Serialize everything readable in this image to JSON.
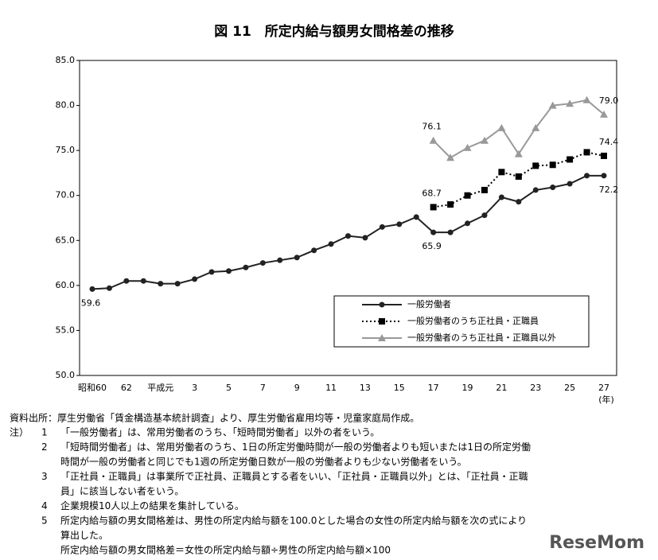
{
  "chart_data": {
    "type": "line",
    "title": "図 11　所定内給与額男女間格差の推移",
    "categories": [
      "昭和60",
      null,
      "62",
      null,
      "平成元",
      null,
      "3",
      null,
      "5",
      null,
      "7",
      null,
      "9",
      null,
      "11",
      null,
      "13",
      null,
      "15",
      null,
      "17",
      null,
      "19",
      null,
      "21",
      null,
      "23",
      null,
      "25",
      null,
      "27"
    ],
    "x_unit": "(年)",
    "ylim": [
      50,
      85
    ],
    "yticks": [
      {
        "value": 50,
        "label": "50.0"
      },
      {
        "value": 55,
        "label": "55.0"
      },
      {
        "value": 60,
        "label": "60.0"
      },
      {
        "value": 65,
        "label": "65.0"
      },
      {
        "value": 70,
        "label": "70.0"
      },
      {
        "value": 75,
        "label": "75.0"
      },
      {
        "value": 80,
        "label": "80.0"
      },
      {
        "value": 85,
        "label": "85.0"
      }
    ],
    "grid": false,
    "legend": "lower right",
    "series": [
      {
        "name": "一般労働者",
        "color": "#222222",
        "marker": "circle",
        "dash": "solid",
        "values": [
          59.6,
          59.7,
          60.5,
          60.5,
          60.2,
          60.2,
          60.7,
          61.5,
          61.6,
          62.0,
          62.5,
          62.8,
          63.1,
          63.9,
          64.6,
          65.5,
          65.3,
          66.5,
          66.8,
          67.6,
          65.9,
          65.9,
          66.9,
          67.8,
          69.8,
          69.3,
          70.6,
          70.9,
          71.3,
          72.2,
          72.2
        ],
        "value_labels": [
          "59.6",
          null,
          null,
          null,
          null,
          null,
          null,
          null,
          null,
          null,
          null,
          null,
          null,
          null,
          null,
          null,
          null,
          null,
          null,
          null,
          "65.9",
          null,
          null,
          null,
          null,
          null,
          null,
          null,
          null,
          null,
          "72.2"
        ]
      },
      {
        "name": "一般労働者のうち正社員・正職員",
        "color": "#000000",
        "marker": "square",
        "dash": "dotted",
        "values": [
          null,
          null,
          null,
          null,
          null,
          null,
          null,
          null,
          null,
          null,
          null,
          null,
          null,
          null,
          null,
          null,
          null,
          null,
          null,
          null,
          68.7,
          69.0,
          70.0,
          70.6,
          72.6,
          72.1,
          73.3,
          73.4,
          74.0,
          74.8,
          74.4
        ],
        "value_labels": [
          null,
          null,
          null,
          null,
          null,
          null,
          null,
          null,
          null,
          null,
          null,
          null,
          null,
          null,
          null,
          null,
          null,
          null,
          null,
          null,
          "68.7",
          null,
          null,
          null,
          null,
          null,
          null,
          null,
          null,
          null,
          "74.4"
        ]
      },
      {
        "name": "一般労働者のうち正社員・正職員以外",
        "color": "#999999",
        "marker": "triangle",
        "dash": "solid",
        "values": [
          null,
          null,
          null,
          null,
          null,
          null,
          null,
          null,
          null,
          null,
          null,
          null,
          null,
          null,
          null,
          null,
          null,
          null,
          null,
          null,
          76.1,
          74.2,
          75.3,
          76.1,
          77.5,
          74.6,
          77.5,
          80.0,
          80.2,
          80.6,
          79.0
        ],
        "value_labels": [
          null,
          null,
          null,
          null,
          null,
          null,
          null,
          null,
          null,
          null,
          null,
          null,
          null,
          null,
          null,
          null,
          null,
          null,
          null,
          null,
          "76.1",
          null,
          null,
          null,
          null,
          null,
          null,
          null,
          null,
          null,
          "79.0"
        ]
      }
    ]
  },
  "source": "資料出所：厚生労働省「賃金構造基本統計調査」より、厚生労働省雇用均等・児童家庭局作成。",
  "notes_label": "注）",
  "notes": [
    {
      "number": "1",
      "lines": [
        "「一般労働者」は、常用労働者のうち、「短時間労働者」以外の者をいう。"
      ]
    },
    {
      "number": "2",
      "lines": [
        "「短時間労働者」は、常用労働者のうち、1日の所定労働時間が一般の労働者よりも短いまたは1日の所定労働",
        "時間が一般の労働者と同じでも1週の所定労働日数が一般の労働者よりも少ない労働者をいう。"
      ]
    },
    {
      "number": "3",
      "lines": [
        "「正社員・正職員」は事業所で正社員、正職員とする者をいい、「正社員・正職員以外」とは、「正社員・正職",
        "員」に該当しない者をいう。"
      ]
    },
    {
      "number": "4",
      "lines": [
        "企業規模10人以上の結果を集計している。"
      ]
    },
    {
      "number": "5",
      "lines": [
        "所定内給与額の男女間格差は、男性の所定内給与額を100.0とした場合の女性の所定内給与額を次の式により",
        "算出した。",
        "所定内給与額の男女間格差＝女性の所定内給与額÷男性の所定内給与額×100"
      ]
    }
  ],
  "watermark": "ReseMom"
}
